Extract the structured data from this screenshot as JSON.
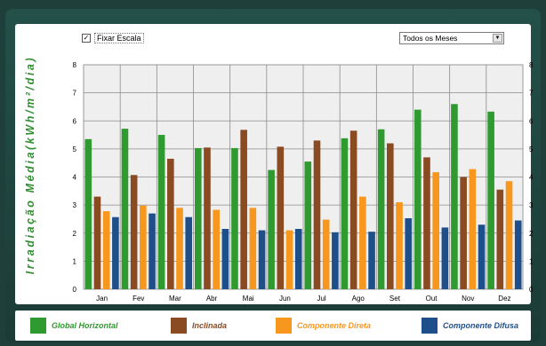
{
  "controls": {
    "fix_scale_label": "Fixar Escala",
    "fix_scale_checked": "✓",
    "period_select_value": "Todos os Meses"
  },
  "chart_data": {
    "type": "bar",
    "ylabel": "Irradiação Média(kWh/m²/dia)",
    "ylim": [
      0,
      8
    ],
    "yticks": [
      "0",
      "1",
      "2",
      "3",
      "4",
      "5",
      "6",
      "7",
      "8"
    ],
    "grid": true,
    "legend_position": "bottom",
    "categories": [
      "Jan",
      "Fev",
      "Mar",
      "Abr",
      "Mai",
      "Jun",
      "Jul",
      "Ago",
      "Set",
      "Out",
      "Nov",
      "Dez"
    ],
    "series": [
      {
        "name": "Global Horizontal",
        "color": "#2f9a2f",
        "values": [
          5.35,
          5.72,
          5.5,
          5.03,
          5.03,
          4.25,
          4.55,
          5.38,
          5.7,
          6.4,
          6.6,
          6.33
        ]
      },
      {
        "name": "Inclinada",
        "color": "#8a4a22",
        "values": [
          3.3,
          4.07,
          4.65,
          5.05,
          5.68,
          5.08,
          5.3,
          5.65,
          5.2,
          4.7,
          4.0,
          3.55
        ]
      },
      {
        "name": "Componente Direta",
        "color": "#f7971e",
        "values": [
          2.78,
          2.98,
          2.9,
          2.83,
          2.9,
          2.1,
          2.48,
          3.3,
          3.1,
          4.17,
          4.28,
          3.85
        ]
      },
      {
        "name": "Componente Difusa",
        "color": "#1f4f8a",
        "values": [
          2.57,
          2.7,
          2.57,
          2.15,
          2.1,
          2.15,
          2.03,
          2.05,
          2.53,
          2.2,
          2.3,
          2.45
        ]
      }
    ]
  }
}
